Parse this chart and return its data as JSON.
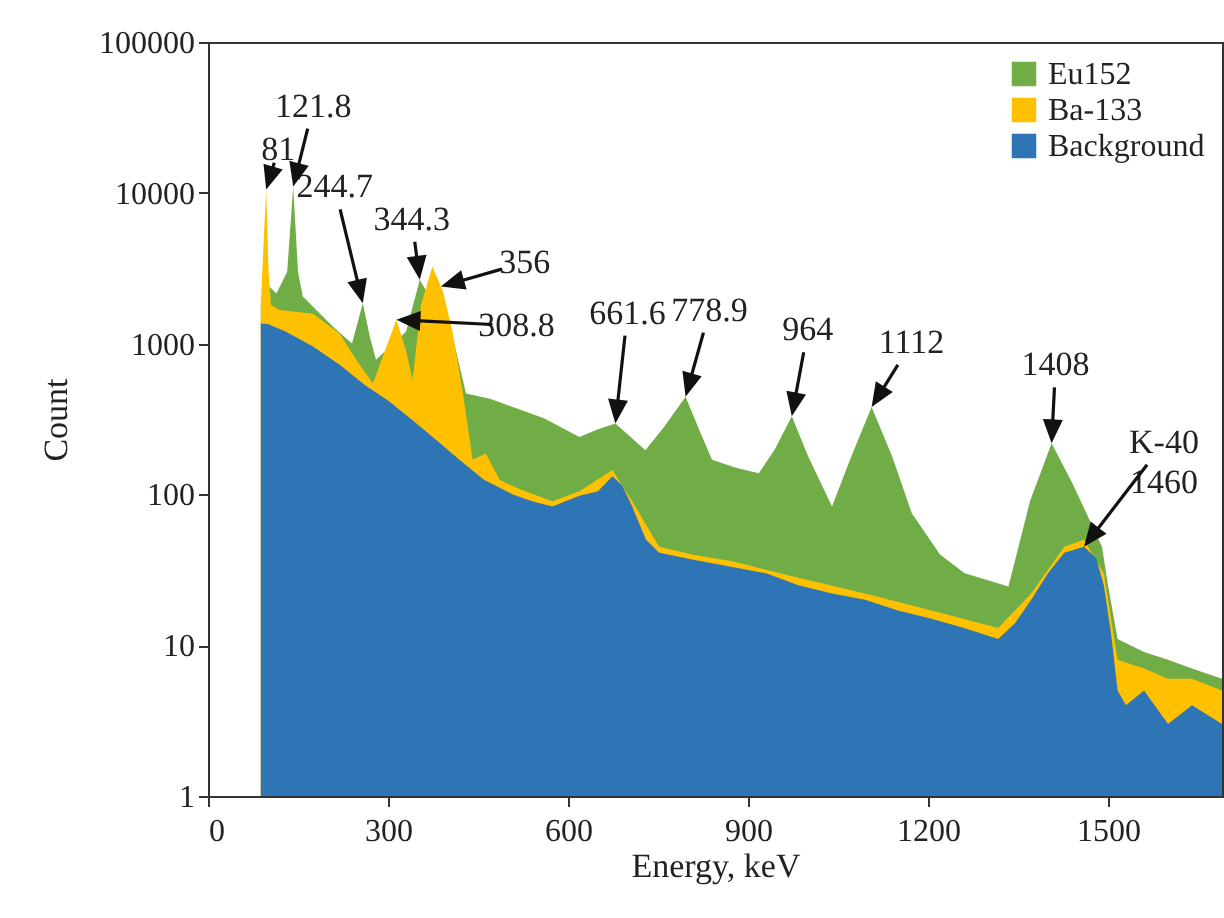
{
  "chart_data": {
    "type": "area",
    "xlabel": "Energy, keV",
    "ylabel": "Count",
    "log": "y",
    "grid": false,
    "legend": "top right",
    "xlim": [
      0,
      1690
    ],
    "xticks": [
      0,
      300,
      600,
      900,
      1200,
      1500
    ],
    "ylim": [
      1,
      100000
    ],
    "yticks": [
      1,
      10,
      100,
      1000,
      10000,
      100000
    ],
    "series": [
      {
        "name": "Eu152",
        "color": "#70ad47",
        "x": [
          88,
          97,
          114,
          132,
          142,
          150,
          158,
          208,
          240,
          258,
          270,
          280,
          330,
          353,
          408,
          430,
          470,
          508,
          560,
          619,
          650,
          679,
          729,
          760,
          796,
          820,
          840,
          880,
          918,
          945,
          973,
          1000,
          1040,
          1070,
          1106,
          1140,
          1173,
          1220,
          1261,
          1300,
          1334,
          1370,
          1406,
          1440,
          1490,
          1500,
          1516,
          1560,
          1600,
          1640,
          1690
        ],
        "values": [
          1800,
          2500,
          2150,
          3000,
          11000,
          3000,
          2050,
          1300,
          1000,
          1850,
          1100,
          780,
          1200,
          2650,
          1100,
          466,
          430,
          380,
          320,
          240,
          270,
          295,
          196,
          280,
          445,
          260,
          170,
          150,
          138,
          200,
          330,
          180,
          83,
          170,
          380,
          180,
          75,
          40,
          30,
          27,
          24.5,
          90,
          218,
          120,
          45,
          25,
          11,
          9,
          8,
          7,
          6
        ]
      },
      {
        "name": "Ba-133",
        "color": "#ffc000",
        "x": [
          88,
          93,
          97,
          101,
          105,
          120,
          175,
          219,
          250,
          275,
          295,
          314,
          330,
          341,
          355,
          374,
          392,
          408,
          425,
          441,
          463,
          486,
          520,
          574,
          619,
          674,
          707,
          752,
          807,
          874,
          984,
          1095,
          1206,
          1317,
          1372,
          1427,
          1460,
          1493,
          1516,
          1560,
          1600,
          1640,
          1690
        ],
        "values": [
          1800,
          5000,
          10500,
          3000,
          1800,
          1670,
          1580,
          1170,
          750,
          545,
          900,
          1440,
          900,
          575,
          1800,
          3240,
          2200,
          1170,
          466,
          170,
          187,
          125,
          108,
          90,
          105,
          145,
          90,
          45,
          40,
          36,
          28,
          22,
          17,
          13,
          22,
          45,
          50,
          30,
          8,
          7,
          6,
          6,
          5
        ]
      },
      {
        "name": "Background",
        "color": "#2e75b6",
        "x": [
          88,
          100,
          130,
          175,
          220,
          263,
          300,
          341,
          380,
          419,
          460,
          508,
          540,
          574,
          619,
          650,
          674,
          690,
          707,
          730,
          752,
          807,
          874,
          930,
          984,
          1040,
          1095,
          1150,
          1206,
          1260,
          1317,
          1345,
          1372,
          1400,
          1427,
          1460,
          1480,
          1493,
          1505,
          1516,
          1530,
          1560,
          1600,
          1640,
          1690
        ],
        "values": [
          1360,
          1350,
          1200,
          955,
          720,
          525,
          420,
          310,
          230,
          170,
          125,
          100,
          90,
          83,
          98,
          105,
          132,
          115,
          83,
          50,
          41,
          37,
          33,
          30,
          25,
          22,
          20,
          17,
          15,
          13,
          11,
          14,
          20,
          30,
          41,
          45,
          38,
          25,
          12,
          5,
          4,
          5,
          3,
          4,
          3
        ]
      }
    ],
    "annotations": [
      {
        "text": "81",
        "x": 97,
        "y": 10500
      },
      {
        "text": "121.8",
        "x": 142,
        "y": 11000
      },
      {
        "text": "244.7",
        "x": 258,
        "y": 1850
      },
      {
        "text": "344.3",
        "x": 353,
        "y": 2650
      },
      {
        "text": "356",
        "x": 388,
        "y": 2390
      },
      {
        "text": "308.8",
        "x": 314,
        "y": 1440
      },
      {
        "text": "661.6",
        "x": 679,
        "y": 295
      },
      {
        "text": "778.9",
        "x": 796,
        "y": 445
      },
      {
        "text": "964",
        "x": 973,
        "y": 330
      },
      {
        "text": "1112",
        "x": 1106,
        "y": 380
      },
      {
        "text": "1408",
        "x": 1406,
        "y": 218
      },
      {
        "text": "K-40 1460",
        "x": 1460,
        "y": 45
      }
    ]
  }
}
